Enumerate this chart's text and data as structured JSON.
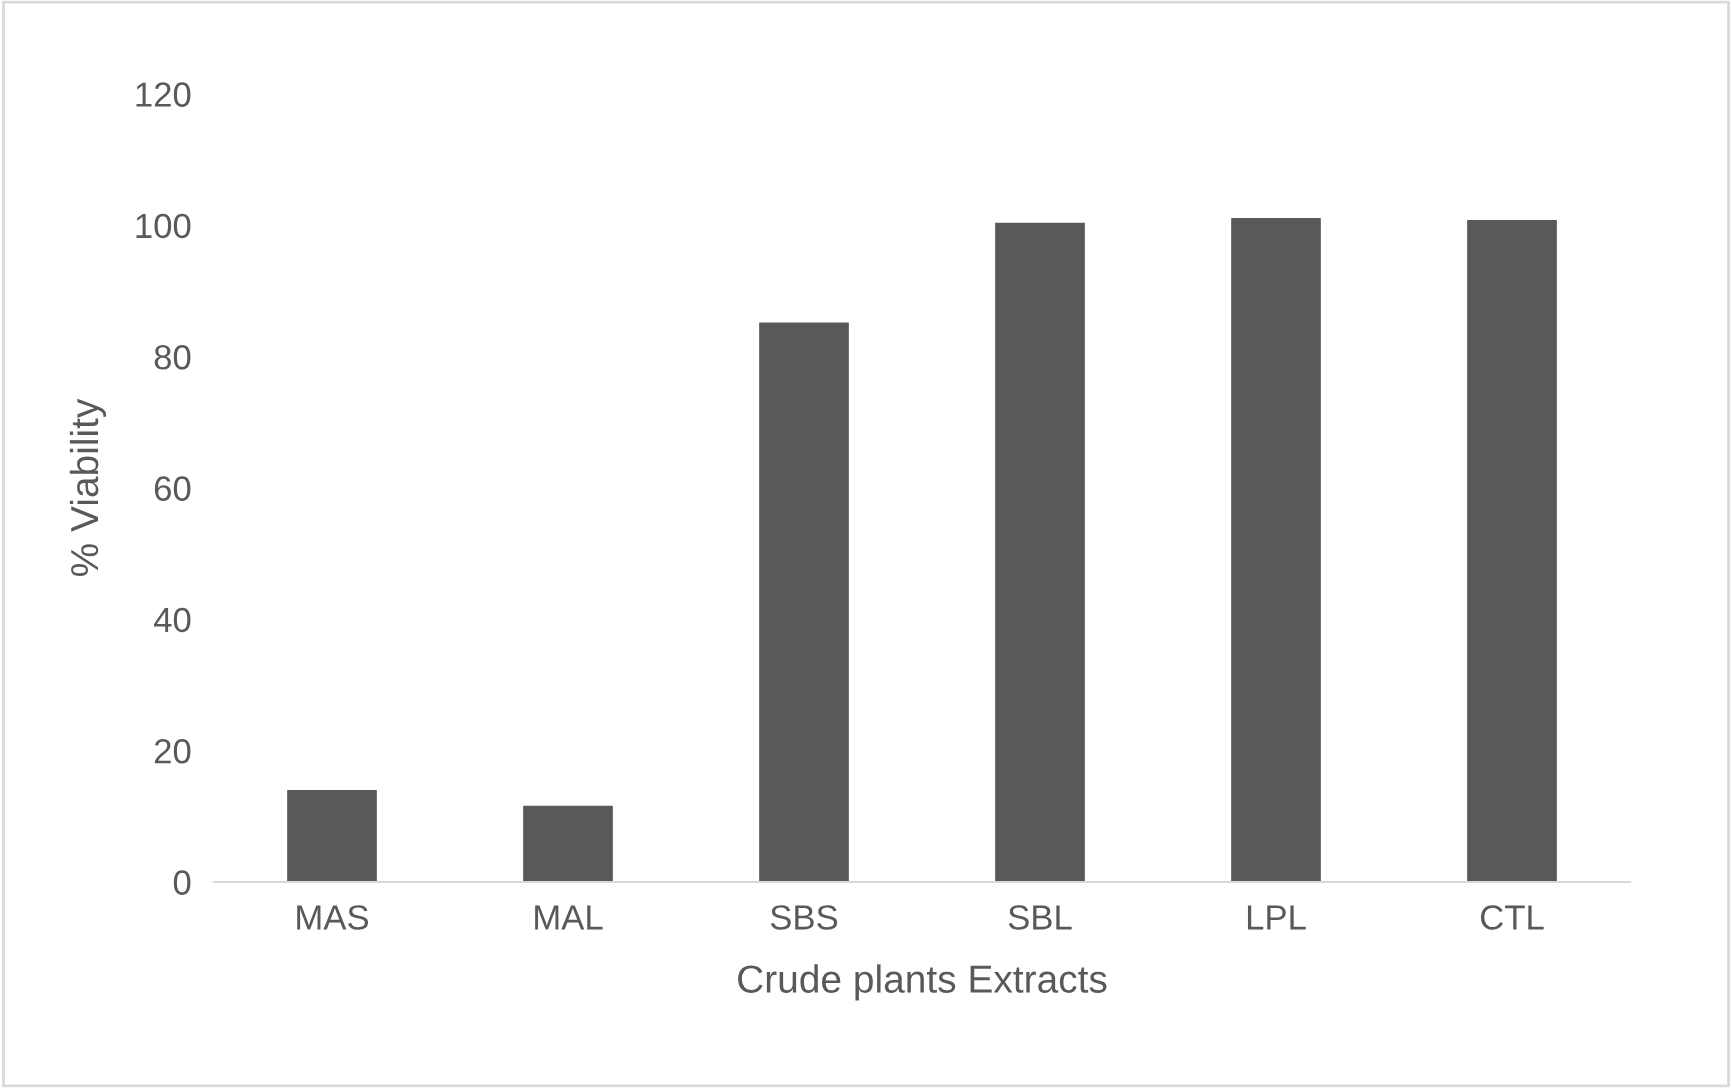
{
  "chart_data": {
    "type": "bar",
    "xlabel": "Crude plants Extracts",
    "ylabel": "% Viability",
    "categories": [
      "MAS",
      "MAL",
      "SBS",
      "SBL",
      "LPL",
      "CTL"
    ],
    "values": [
      14.0,
      11.6,
      85.2,
      100.4,
      101.1,
      100.8
    ],
    "color": "#595959",
    "ylim": [
      0,
      120
    ],
    "yticks": [
      0,
      20,
      40,
      60,
      80,
      100,
      120
    ],
    "grid": false,
    "legend": false
  }
}
